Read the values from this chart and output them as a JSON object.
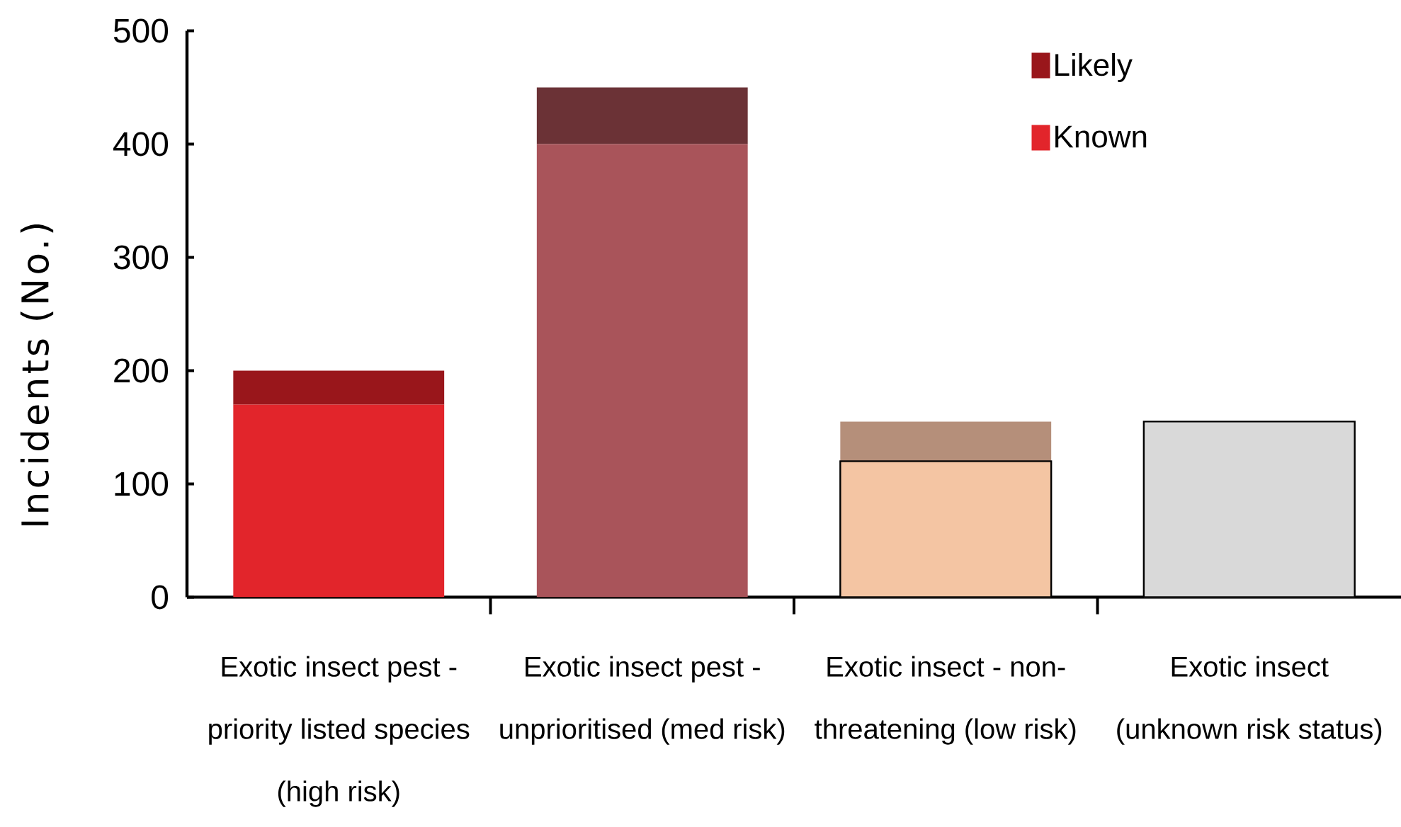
{
  "chart_data": {
    "type": "bar",
    "stacked": true,
    "ylabel": "Incidents (No.)",
    "categories": [
      "Exotic insect pest - priority listed species (high risk)",
      "Exotic insect pest - unprioritised (med risk)",
      "Exotic insect - non-threatening (low risk)",
      "Exotic insect (unknown risk status)"
    ],
    "series": [
      {
        "name": "Known",
        "colors": [
          "#e2252b",
          "#a9545a",
          "#f4c5a3",
          "#d9d9d9"
        ],
        "values": [
          170,
          400,
          120,
          155
        ]
      },
      {
        "name": "Likely",
        "colors": [
          "#99161b",
          "#6b3236",
          "#b58f7a",
          "#d9d9d9"
        ],
        "values": [
          30,
          50,
          35,
          null
        ]
      }
    ],
    "ylim": [
      0,
      500
    ],
    "yticks": [
      0,
      100,
      200,
      300,
      400,
      500
    ],
    "legend": "top right"
  }
}
